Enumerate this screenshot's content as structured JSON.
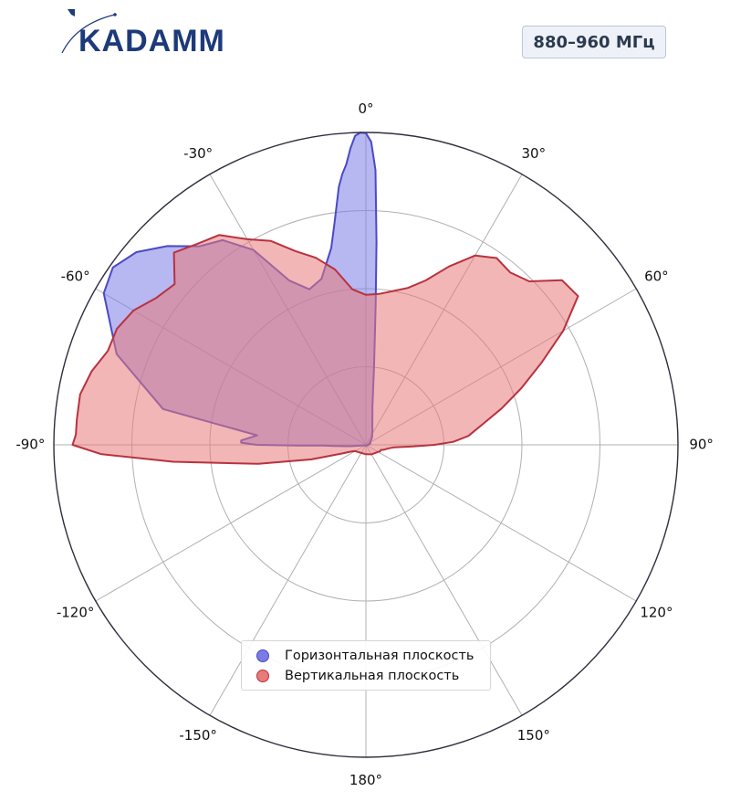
{
  "brand": {
    "logo_text": "KADAMM"
  },
  "badge": {
    "frequency": "880–960 МГц"
  },
  "legend": {
    "items": [
      {
        "label": "Горизонтальная плоскость",
        "color": "#7b7be8",
        "edge": "#4a4ac4"
      },
      {
        "label": "Вертикальная плоскость",
        "color": "#e87a7a",
        "edge": "#b8323f"
      }
    ]
  },
  "chart_data": {
    "type": "polar-area",
    "angle_unit": "degrees",
    "zero_direction": "top",
    "clockwise": true,
    "angular_ticks": [
      "0°",
      "30°",
      "60°",
      "90°",
      "120°",
      "150°",
      "180°",
      "-150°",
      "-120°",
      "-90°",
      "-60°",
      "-30°"
    ],
    "radial_ticks": [
      0.25,
      0.5,
      0.75,
      1.0
    ],
    "rlim": [
      0,
      1
    ],
    "grid": true,
    "series": [
      {
        "name": "Горизонтальная плоскость",
        "color": "#7b7be8",
        "edge": "#4a4ac4",
        "theta": [
          0,
          1,
          2,
          3,
          4,
          6,
          10,
          15,
          20,
          25,
          30,
          35,
          40,
          45,
          50,
          55,
          60,
          65,
          70,
          71,
          72,
          73,
          74,
          75,
          76,
          80,
          85,
          88,
          89,
          89.5,
          90,
          90.5,
          91,
          92,
          93,
          94,
          96,
          100,
          120,
          150,
          180,
          210,
          240,
          250,
          260,
          265,
          268,
          269,
          269.5,
          270,
          271,
          272,
          275,
          280,
          290,
          300,
          305,
          310,
          315,
          320,
          325,
          330,
          335,
          340,
          345,
          350,
          352,
          354,
          355,
          356,
          357,
          358,
          359,
          360
        ],
        "r": [
          0.998,
          0.97,
          0.88,
          0.65,
          0.45,
          0.25,
          0.12,
          0.08,
          0.06,
          0.05,
          0.04,
          0.035,
          0.03,
          0.025,
          0.02,
          0.018,
          0.015,
          0.013,
          0.012,
          0.013,
          0.015,
          0.013,
          0.012,
          0.012,
          0.012,
          0.01,
          0.01,
          0.008,
          0.006,
          0.005,
          0.004,
          0.005,
          0.006,
          0.006,
          0.006,
          0.006,
          0.005,
          0.004,
          0.003,
          0.003,
          0.003,
          0.003,
          0.003,
          0.004,
          0.01,
          0.05,
          0.1,
          0.14,
          0.22,
          0.35,
          0.4,
          0.4,
          0.35,
          0.66,
          0.85,
          0.97,
          0.99,
          0.96,
          0.9,
          0.83,
          0.8,
          0.72,
          0.58,
          0.53,
          0.55,
          0.64,
          0.72,
          0.83,
          0.87,
          0.9,
          0.95,
          0.99,
          1.0,
          0.998
        ]
      },
      {
        "name": "Вертикальная плоскость",
        "color": "#e87a7a",
        "edge": "#b8323f",
        "theta": [
          0,
          5,
          10,
          15,
          20,
          25,
          30,
          35,
          40,
          45,
          50,
          55,
          60,
          65,
          70,
          75,
          80,
          85,
          88,
          90,
          92,
          95,
          100,
          105,
          110,
          115,
          120,
          130,
          150,
          180,
          210,
          230,
          240,
          245,
          250,
          255,
          260,
          265,
          268,
          270,
          272,
          275,
          280,
          285,
          290,
          295,
          300,
          305,
          310,
          315,
          320,
          325,
          330,
          335,
          340,
          345,
          350,
          355,
          360
        ],
        "r": [
          0.48,
          0.485,
          0.5,
          0.52,
          0.56,
          0.63,
          0.7,
          0.73,
          0.72,
          0.74,
          0.82,
          0.83,
          0.73,
          0.62,
          0.53,
          0.45,
          0.38,
          0.33,
          0.28,
          0.22,
          0.15,
          0.09,
          0.07,
          0.06,
          0.05,
          0.05,
          0.045,
          0.04,
          0.035,
          0.03,
          0.03,
          0.035,
          0.04,
          0.05,
          0.08,
          0.18,
          0.35,
          0.62,
          0.85,
          0.94,
          0.93,
          0.93,
          0.93,
          0.91,
          0.88,
          0.88,
          0.86,
          0.82,
          0.8,
          0.87,
          0.84,
          0.82,
          0.76,
          0.72,
          0.66,
          0.62,
          0.57,
          0.5,
          0.48
        ]
      }
    ]
  }
}
